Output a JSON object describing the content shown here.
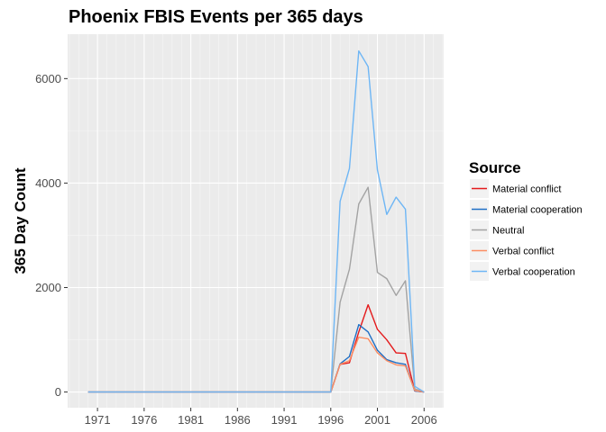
{
  "chart_data": {
    "type": "line",
    "title": "Phoenix FBIS Events per 365 days",
    "xlabel": "",
    "ylabel": "365 Day Count",
    "xlim": [
      1967.8,
      2008.1
    ],
    "ylim": [
      -300,
      6850
    ],
    "x_ticks": [
      1971,
      1976,
      1981,
      1986,
      1991,
      1996,
      2001,
      2006
    ],
    "x_tick_labels": [
      "1971",
      "1976",
      "1981",
      "1986",
      "1991",
      "1996",
      "2001",
      "2006"
    ],
    "y_ticks": [
      0,
      2000,
      4000,
      6000
    ],
    "y_tick_labels": [
      "0",
      "2000",
      "4000",
      "6000"
    ],
    "grid": true,
    "legend": {
      "title": "Source",
      "position": "right"
    },
    "series": [
      {
        "name": "Material conflict",
        "color": "#e41a1c",
        "points": [
          [
            1970,
            0
          ],
          [
            1995,
            0
          ],
          [
            1996,
            0
          ],
          [
            1997,
            530
          ],
          [
            1998,
            560
          ],
          [
            1999,
            1150
          ],
          [
            2000,
            1670
          ],
          [
            2001,
            1200
          ],
          [
            2002,
            1000
          ],
          [
            2003,
            750
          ],
          [
            2004,
            740
          ],
          [
            2005,
            20
          ],
          [
            2006,
            0
          ]
        ]
      },
      {
        "name": "Material cooperation",
        "color": "#1f6fc5",
        "points": [
          [
            1970,
            0
          ],
          [
            1995,
            0
          ],
          [
            1996,
            0
          ],
          [
            1997,
            540
          ],
          [
            1998,
            680
          ],
          [
            1999,
            1290
          ],
          [
            2000,
            1150
          ],
          [
            2001,
            800
          ],
          [
            2002,
            620
          ],
          [
            2003,
            560
          ],
          [
            2004,
            530
          ],
          [
            2005,
            20
          ],
          [
            2006,
            0
          ]
        ]
      },
      {
        "name": "Neutral",
        "color": "#a3a3a3",
        "points": [
          [
            1970,
            0
          ],
          [
            1995,
            0
          ],
          [
            1996,
            0
          ],
          [
            1997,
            1720
          ],
          [
            1998,
            2350
          ],
          [
            1999,
            3600
          ],
          [
            2000,
            3920
          ],
          [
            2001,
            2290
          ],
          [
            2002,
            2170
          ],
          [
            2003,
            1850
          ],
          [
            2004,
            2130
          ],
          [
            2005,
            60
          ],
          [
            2006,
            0
          ]
        ]
      },
      {
        "name": "Verbal conflict",
        "color": "#fc8d62",
        "points": [
          [
            1970,
            0
          ],
          [
            1995,
            0
          ],
          [
            1996,
            0
          ],
          [
            1997,
            530
          ],
          [
            1998,
            600
          ],
          [
            1999,
            1050
          ],
          [
            2000,
            1020
          ],
          [
            2001,
            750
          ],
          [
            2002,
            600
          ],
          [
            2003,
            520
          ],
          [
            2004,
            500
          ],
          [
            2005,
            30
          ],
          [
            2006,
            0
          ]
        ]
      },
      {
        "name": "Verbal cooperation",
        "color": "#6eb6f5",
        "points": [
          [
            1970,
            0
          ],
          [
            1995,
            0
          ],
          [
            1996,
            0
          ],
          [
            1997,
            3650
          ],
          [
            1998,
            4280
          ],
          [
            1999,
            6530
          ],
          [
            2000,
            6230
          ],
          [
            2001,
            4250
          ],
          [
            2002,
            3400
          ],
          [
            2003,
            3730
          ],
          [
            2004,
            3500
          ],
          [
            2005,
            110
          ],
          [
            2006,
            0
          ]
        ]
      }
    ]
  }
}
